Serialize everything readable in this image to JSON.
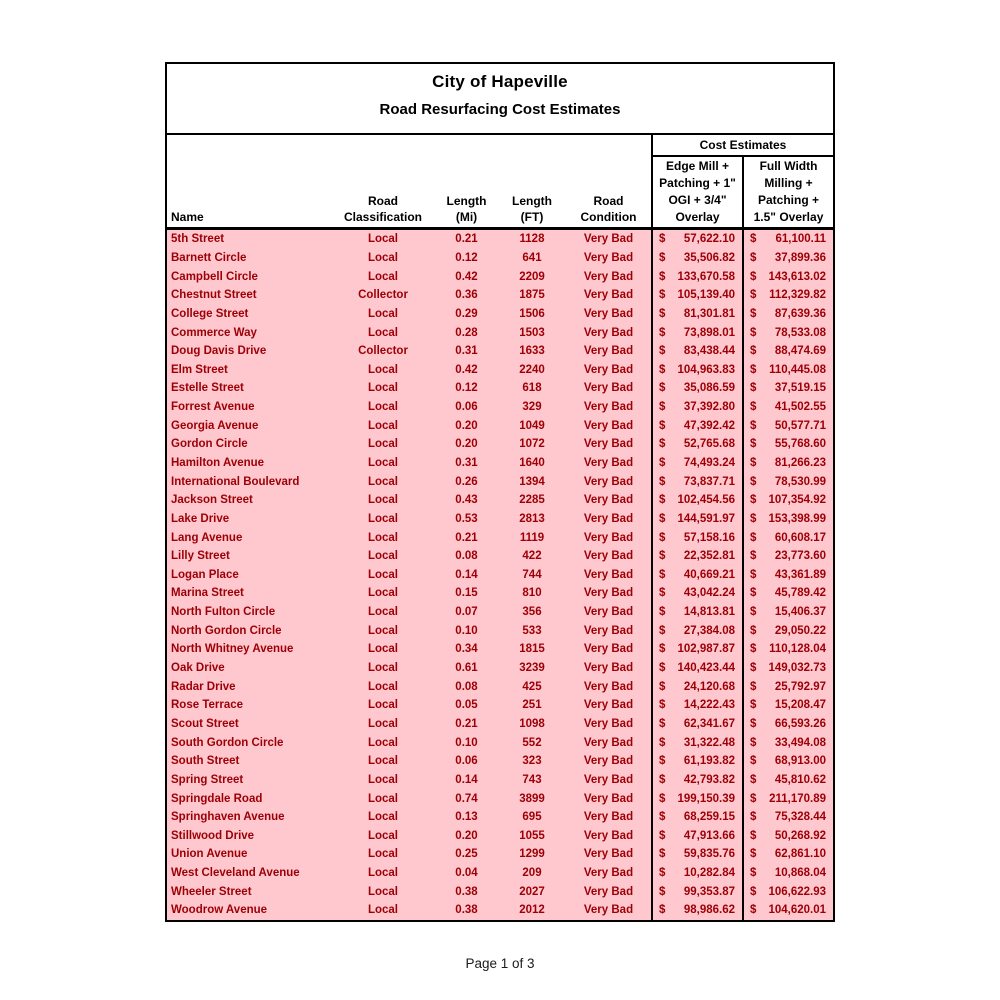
{
  "header": {
    "title": "City of Hapeville",
    "subtitle": "Road Resurfacing Cost Estimates"
  },
  "columns": {
    "name": "Name",
    "classification": "Road\nClassification",
    "length_mi": "Length\n(Mi)",
    "length_ft": "Length\n(FT)",
    "condition": "Road\nCondition",
    "cost_group": "Cost Estimates",
    "cost1": "Edge Mill +\nPatching + 1\"\nOGI + 3/4\"\nOverlay",
    "cost2": "Full Width\nMilling +\nPatching +\n1.5\" Overlay"
  },
  "currency_symbol": "$",
  "colors": {
    "row_bg": "#ffc7ce",
    "row_fg": "#9c0006",
    "border": "#000000"
  },
  "rows": [
    {
      "name": "5th Street",
      "classification": "Local",
      "mi": "0.21",
      "ft": "1128",
      "condition": "Very Bad",
      "cost1": "57,622.10",
      "cost2": "61,100.11"
    },
    {
      "name": "Barnett Circle",
      "classification": "Local",
      "mi": "0.12",
      "ft": "641",
      "condition": "Very Bad",
      "cost1": "35,506.82",
      "cost2": "37,899.36"
    },
    {
      "name": "Campbell Circle",
      "classification": "Local",
      "mi": "0.42",
      "ft": "2209",
      "condition": "Very Bad",
      "cost1": "133,670.58",
      "cost2": "143,613.02"
    },
    {
      "name": "Chestnut Street",
      "classification": "Collector",
      "mi": "0.36",
      "ft": "1875",
      "condition": "Very Bad",
      "cost1": "105,139.40",
      "cost2": "112,329.82"
    },
    {
      "name": "College Street",
      "classification": "Local",
      "mi": "0.29",
      "ft": "1506",
      "condition": "Very Bad",
      "cost1": "81,301.81",
      "cost2": "87,639.36"
    },
    {
      "name": "Commerce Way",
      "classification": "Local",
      "mi": "0.28",
      "ft": "1503",
      "condition": "Very Bad",
      "cost1": "73,898.01",
      "cost2": "78,533.08"
    },
    {
      "name": "Doug Davis Drive",
      "classification": "Collector",
      "mi": "0.31",
      "ft": "1633",
      "condition": "Very Bad",
      "cost1": "83,438.44",
      "cost2": "88,474.69"
    },
    {
      "name": "Elm Street",
      "classification": "Local",
      "mi": "0.42",
      "ft": "2240",
      "condition": "Very Bad",
      "cost1": "104,963.83",
      "cost2": "110,445.08"
    },
    {
      "name": "Estelle Street",
      "classification": "Local",
      "mi": "0.12",
      "ft": "618",
      "condition": "Very Bad",
      "cost1": "35,086.59",
      "cost2": "37,519.15"
    },
    {
      "name": "Forrest Avenue",
      "classification": "Local",
      "mi": "0.06",
      "ft": "329",
      "condition": "Very Bad",
      "cost1": "37,392.80",
      "cost2": "41,502.55"
    },
    {
      "name": "Georgia Avenue",
      "classification": "Local",
      "mi": "0.20",
      "ft": "1049",
      "condition": "Very Bad",
      "cost1": "47,392.42",
      "cost2": "50,577.71"
    },
    {
      "name": "Gordon Circle",
      "classification": "Local",
      "mi": "0.20",
      "ft": "1072",
      "condition": "Very Bad",
      "cost1": "52,765.68",
      "cost2": "55,768.60"
    },
    {
      "name": "Hamilton Avenue",
      "classification": "Local",
      "mi": "0.31",
      "ft": "1640",
      "condition": "Very Bad",
      "cost1": "74,493.24",
      "cost2": "81,266.23"
    },
    {
      "name": "International Boulevard",
      "classification": "Local",
      "mi": "0.26",
      "ft": "1394",
      "condition": "Very Bad",
      "cost1": "73,837.71",
      "cost2": "78,530.99"
    },
    {
      "name": "Jackson Street",
      "classification": "Local",
      "mi": "0.43",
      "ft": "2285",
      "condition": "Very Bad",
      "cost1": "102,454.56",
      "cost2": "107,354.92"
    },
    {
      "name": "Lake Drive",
      "classification": "Local",
      "mi": "0.53",
      "ft": "2813",
      "condition": "Very Bad",
      "cost1": "144,591.97",
      "cost2": "153,398.99"
    },
    {
      "name": "Lang Avenue",
      "classification": "Local",
      "mi": "0.21",
      "ft": "1119",
      "condition": "Very Bad",
      "cost1": "57,158.16",
      "cost2": "60,608.17"
    },
    {
      "name": "Lilly Street",
      "classification": "Local",
      "mi": "0.08",
      "ft": "422",
      "condition": "Very Bad",
      "cost1": "22,352.81",
      "cost2": "23,773.60"
    },
    {
      "name": "Logan Place",
      "classification": "Local",
      "mi": "0.14",
      "ft": "744",
      "condition": "Very Bad",
      "cost1": "40,669.21",
      "cost2": "43,361.89"
    },
    {
      "name": "Marina Street",
      "classification": "Local",
      "mi": "0.15",
      "ft": "810",
      "condition": "Very Bad",
      "cost1": "43,042.24",
      "cost2": "45,789.42"
    },
    {
      "name": "North Fulton Circle",
      "classification": "Local",
      "mi": "0.07",
      "ft": "356",
      "condition": "Very Bad",
      "cost1": "14,813.81",
      "cost2": "15,406.37"
    },
    {
      "name": "North Gordon Circle",
      "classification": "Local",
      "mi": "0.10",
      "ft": "533",
      "condition": "Very Bad",
      "cost1": "27,384.08",
      "cost2": "29,050.22"
    },
    {
      "name": "North Whitney Avenue",
      "classification": "Local",
      "mi": "0.34",
      "ft": "1815",
      "condition": "Very Bad",
      "cost1": "102,987.87",
      "cost2": "110,128.04"
    },
    {
      "name": "Oak Drive",
      "classification": "Local",
      "mi": "0.61",
      "ft": "3239",
      "condition": "Very Bad",
      "cost1": "140,423.44",
      "cost2": "149,032.73"
    },
    {
      "name": "Radar Drive",
      "classification": "Local",
      "mi": "0.08",
      "ft": "425",
      "condition": "Very Bad",
      "cost1": "24,120.68",
      "cost2": "25,792.97"
    },
    {
      "name": "Rose Terrace",
      "classification": "Local",
      "mi": "0.05",
      "ft": "251",
      "condition": "Very Bad",
      "cost1": "14,222.43",
      "cost2": "15,208.47"
    },
    {
      "name": "Scout Street",
      "classification": "Local",
      "mi": "0.21",
      "ft": "1098",
      "condition": "Very Bad",
      "cost1": "62,341.67",
      "cost2": "66,593.26"
    },
    {
      "name": "South Gordon Circle",
      "classification": "Local",
      "mi": "0.10",
      "ft": "552",
      "condition": "Very Bad",
      "cost1": "31,322.48",
      "cost2": "33,494.08"
    },
    {
      "name": "South Street",
      "classification": "Local",
      "mi": "0.06",
      "ft": "323",
      "condition": "Very Bad",
      "cost1": "61,193.82",
      "cost2": "68,913.00"
    },
    {
      "name": "Spring Street",
      "classification": "Local",
      "mi": "0.14",
      "ft": "743",
      "condition": "Very Bad",
      "cost1": "42,793.82",
      "cost2": "45,810.62"
    },
    {
      "name": "Springdale Road",
      "classification": "Local",
      "mi": "0.74",
      "ft": "3899",
      "condition": "Very Bad",
      "cost1": "199,150.39",
      "cost2": "211,170.89"
    },
    {
      "name": "Springhaven Avenue",
      "classification": "Local",
      "mi": "0.13",
      "ft": "695",
      "condition": "Very Bad",
      "cost1": "68,259.15",
      "cost2": "75,328.44"
    },
    {
      "name": "Stillwood Drive",
      "classification": "Local",
      "mi": "0.20",
      "ft": "1055",
      "condition": "Very Bad",
      "cost1": "47,913.66",
      "cost2": "50,268.92"
    },
    {
      "name": "Union Avenue",
      "classification": "Local",
      "mi": "0.25",
      "ft": "1299",
      "condition": "Very Bad",
      "cost1": "59,835.76",
      "cost2": "62,861.10"
    },
    {
      "name": "West Cleveland Avenue",
      "classification": "Local",
      "mi": "0.04",
      "ft": "209",
      "condition": "Very Bad",
      "cost1": "10,282.84",
      "cost2": "10,868.04"
    },
    {
      "name": "Wheeler Street",
      "classification": "Local",
      "mi": "0.38",
      "ft": "2027",
      "condition": "Very Bad",
      "cost1": "99,353.87",
      "cost2": "106,622.93"
    },
    {
      "name": "Woodrow Avenue",
      "classification": "Local",
      "mi": "0.38",
      "ft": "2012",
      "condition": "Very Bad",
      "cost1": "98,986.62",
      "cost2": "104,620.01"
    }
  ],
  "footer": {
    "page_label": "Page 1 of 3"
  }
}
